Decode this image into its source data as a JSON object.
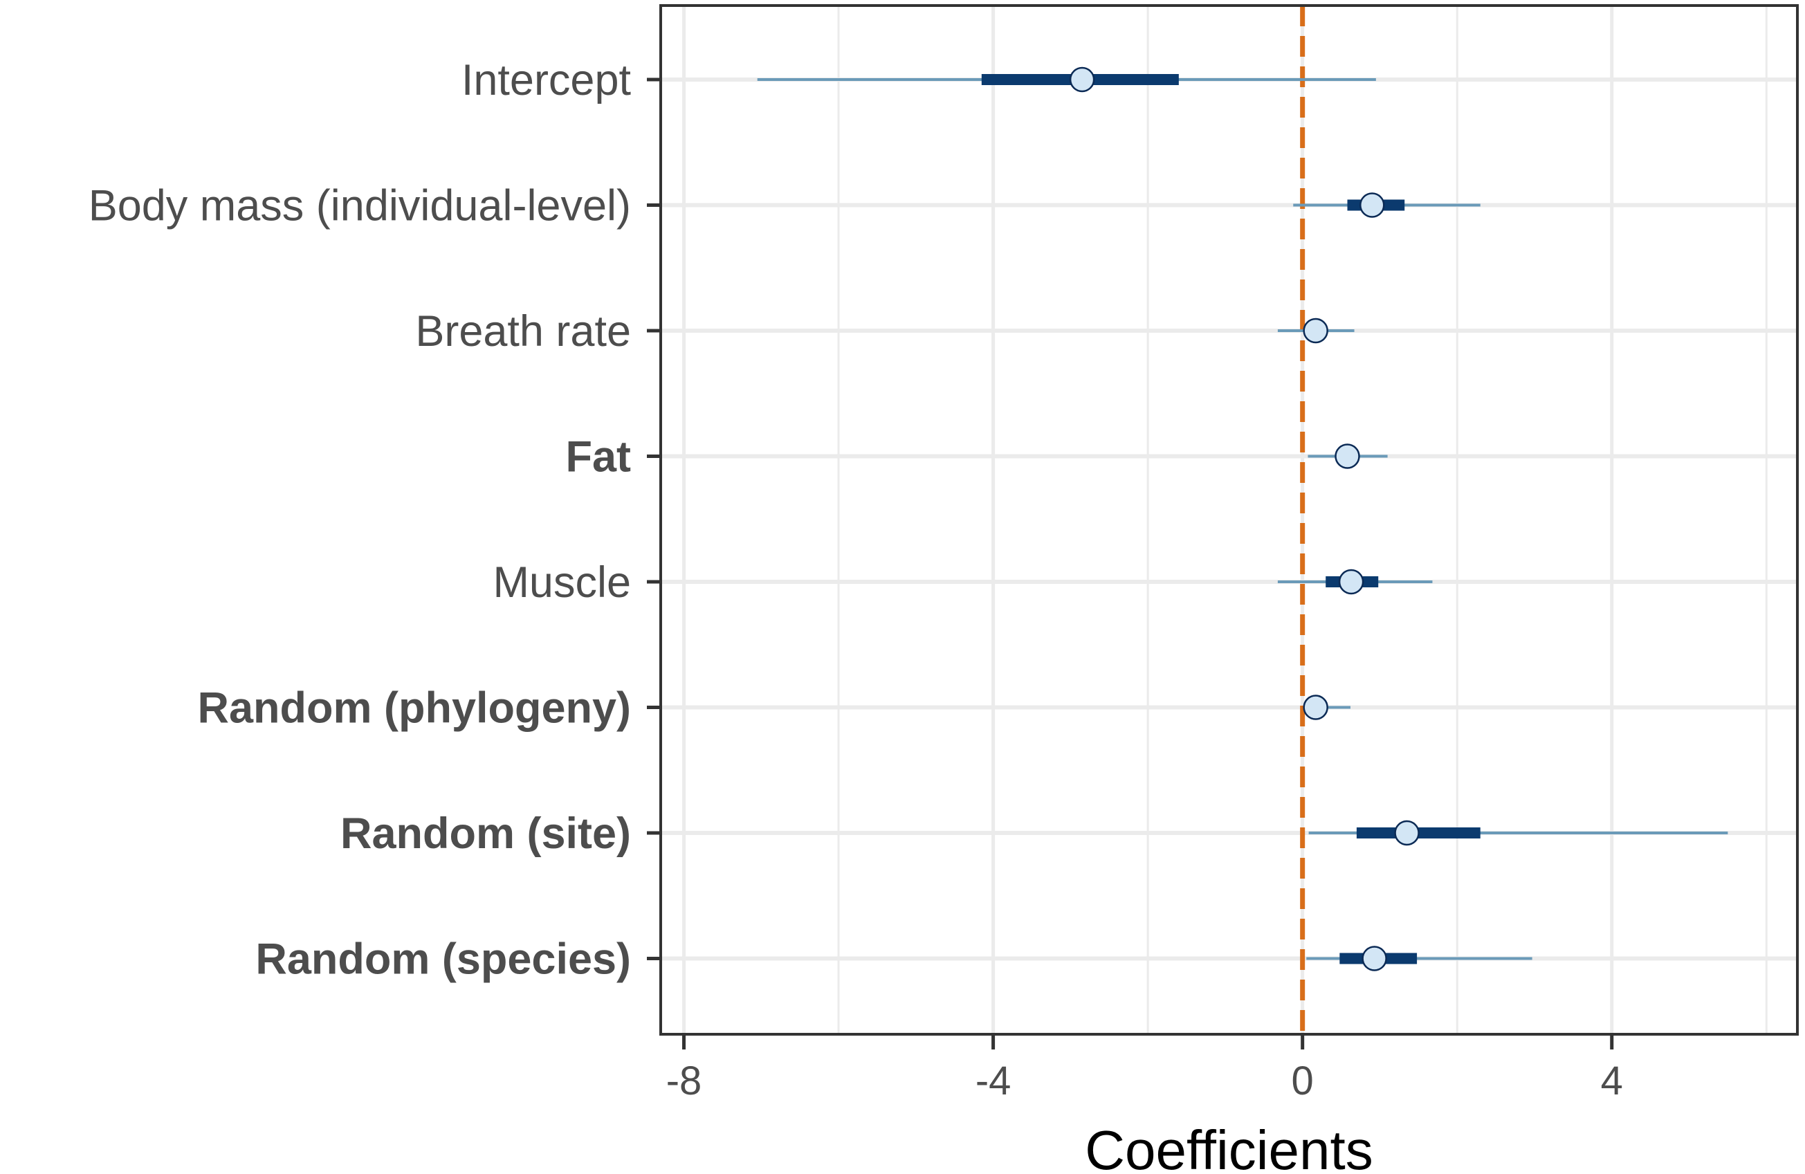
{
  "chart_data": {
    "type": "coefficient_interval_plot",
    "title": "",
    "xlabel": "Coefficients",
    "ylabel": "",
    "xlim": [
      -8.3,
      6.4
    ],
    "x_ticks": [
      {
        "value": -8,
        "label": "-8"
      },
      {
        "value": -4,
        "label": "-4"
      },
      {
        "value": 0,
        "label": "0"
      },
      {
        "value": 4,
        "label": "4"
      }
    ],
    "minor_gridlines": [
      -6,
      -2,
      2,
      6
    ],
    "reference_line": {
      "value": 0,
      "style": "dashed",
      "color": "#d86e1a"
    },
    "grid": true,
    "terms": [
      {
        "label": "Intercept",
        "bold": false,
        "estimate": -2.85,
        "inner": [
          -4.15,
          -1.6
        ],
        "outer": [
          -7.05,
          0.95
        ]
      },
      {
        "label": "Body mass (individual-level)",
        "bold": false,
        "estimate": 0.9,
        "inner": [
          0.58,
          1.32
        ],
        "outer": [
          -0.12,
          2.3
        ]
      },
      {
        "label": "Breath rate",
        "bold": false,
        "estimate": 0.17,
        "inner": [
          0.17,
          0.17
        ],
        "outer": [
          -0.32,
          0.67
        ]
      },
      {
        "label": "Fat",
        "bold": true,
        "estimate": 0.58,
        "inner": [
          0.58,
          0.58
        ],
        "outer": [
          0.07,
          1.1
        ]
      },
      {
        "label": "Muscle",
        "bold": false,
        "estimate": 0.63,
        "inner": [
          0.3,
          0.98
        ],
        "outer": [
          -0.32,
          1.68
        ]
      },
      {
        "label": "Random (phylogeny)",
        "bold": true,
        "estimate": 0.17,
        "inner": [
          0.17,
          0.17
        ],
        "outer": [
          0.05,
          0.62
        ]
      },
      {
        "label": "Random (site)",
        "bold": true,
        "estimate": 1.35,
        "inner": [
          0.7,
          2.3
        ],
        "outer": [
          0.08,
          5.5
        ]
      },
      {
        "label": "Random (species)",
        "bold": true,
        "estimate": 0.93,
        "inner": [
          0.48,
          1.48
        ],
        "outer": [
          0.05,
          2.97
        ]
      }
    ],
    "colors": {
      "outer_interval": "#6a9ab8",
      "inner_interval": "#0b3a6e",
      "point_fill": "#d3e6f5",
      "point_stroke": "#0b2a55",
      "panel_border": "#333333",
      "gridline": "#ebebeb",
      "tick": "#333333"
    }
  }
}
